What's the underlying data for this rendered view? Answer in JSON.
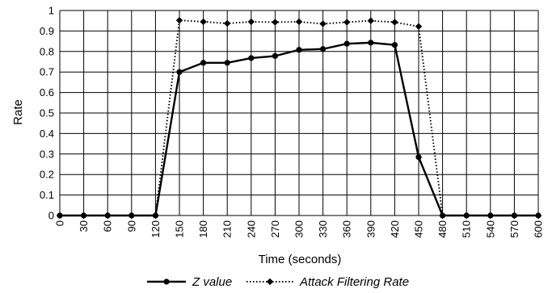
{
  "chart_data": {
    "type": "line",
    "xlabel": "Time (seconds)",
    "ylabel": "Rate",
    "x": [
      0,
      30,
      60,
      90,
      120,
      150,
      180,
      210,
      240,
      270,
      300,
      330,
      360,
      390,
      420,
      450,
      480,
      510,
      540,
      570,
      600
    ],
    "x_tick_labels": [
      "0",
      "30",
      "60",
      "90",
      "120",
      "150",
      "180",
      "210",
      "240",
      "270",
      "300",
      "330",
      "360",
      "390",
      "420",
      "450",
      "480",
      "510",
      "540",
      "570",
      "600"
    ],
    "y_tick_labels": [
      "0",
      "0.1",
      "0.2",
      "0.3",
      "0.4",
      "0.5",
      "0.6",
      "0.7",
      "0.8",
      "0.9",
      "1"
    ],
    "xlim": [
      0,
      600
    ],
    "ylim": [
      0,
      1
    ],
    "grid": "horizontal and vertical",
    "legend_position": "bottom",
    "series": [
      {
        "name": "Z value",
        "style": "solid",
        "marker": "circle",
        "color": "#000000",
        "values": [
          0,
          0,
          0,
          0,
          0,
          0.7,
          0.745,
          0.745,
          0.768,
          0.778,
          0.808,
          0.812,
          0.838,
          0.843,
          0.832,
          0.285,
          0,
          0,
          0,
          0,
          0
        ]
      },
      {
        "name": "Attack Filtering Rate",
        "style": "dotted",
        "marker": "diamond",
        "color": "#000000",
        "values": [
          0,
          0,
          0,
          0,
          0,
          0.952,
          0.945,
          0.937,
          0.945,
          0.943,
          0.945,
          0.935,
          0.943,
          0.95,
          0.943,
          0.922,
          0,
          0,
          0,
          0,
          0
        ]
      }
    ]
  }
}
